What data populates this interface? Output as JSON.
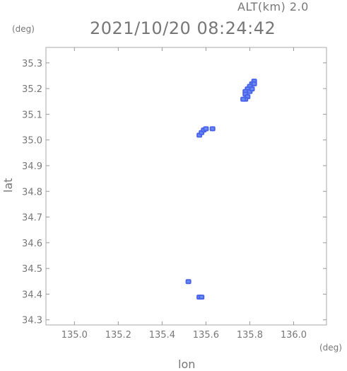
{
  "header": {
    "alt_label": "ALT(km) 2.0",
    "timestamp": "2021/10/20 08:24:42",
    "y_unit": "(deg)",
    "x_unit": "(deg)"
  },
  "chart_data": {
    "type": "scatter",
    "title": "2021/10/20 08:24:42",
    "subtitle": "ALT(km) 2.0",
    "xlabel": "lon",
    "ylabel": "lat",
    "xlim": [
      134.87,
      136.15
    ],
    "ylim": [
      34.28,
      35.36
    ],
    "xticks": [
      "135.0",
      "135.2",
      "135.4",
      "135.6",
      "135.8",
      "136.0"
    ],
    "yticks": [
      "34.3",
      "34.4",
      "34.5",
      "34.6",
      "34.7",
      "34.8",
      "34.9",
      "35.0",
      "35.1",
      "35.2",
      "35.3"
    ],
    "grid": false,
    "colors": {
      "echo_main": "#4a63ea",
      "echo_light": "#6a8ff0",
      "axis": "#999999",
      "text": "#777777"
    },
    "clusters": [
      {
        "name": "",
        "points": [
          [
            135.82,
            35.23
          ],
          [
            135.81,
            35.22
          ],
          [
            135.8,
            35.21
          ],
          [
            135.79,
            35.2
          ],
          [
            135.78,
            35.19
          ],
          [
            135.78,
            35.18
          ],
          [
            135.79,
            35.17
          ],
          [
            135.78,
            35.16
          ],
          [
            135.77,
            35.16
          ],
          [
            135.8,
            35.19
          ],
          [
            135.81,
            35.2
          ],
          [
            135.82,
            35.22
          ]
        ]
      },
      {
        "name": "",
        "points": [
          [
            135.57,
            35.02
          ],
          [
            135.58,
            35.03
          ],
          [
            135.59,
            35.04
          ],
          [
            135.6,
            35.045
          ],
          [
            135.63,
            35.045
          ]
        ]
      },
      {
        "name": "",
        "points": [
          [
            135.52,
            34.45
          ],
          [
            135.57,
            34.39
          ],
          [
            135.58,
            34.39
          ]
        ]
      }
    ]
  }
}
